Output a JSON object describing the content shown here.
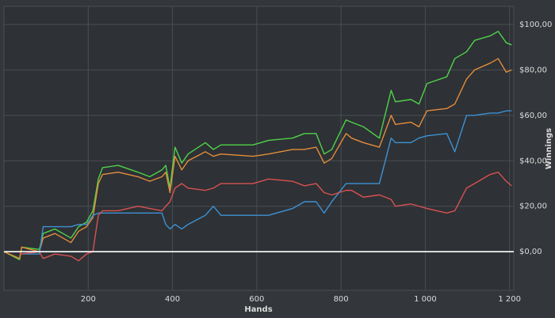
{
  "chart_data": {
    "type": "line",
    "x_label": "Hands",
    "y_label": "Winnings",
    "x": [
      0,
      37,
      42,
      84,
      93,
      121,
      159,
      177,
      196,
      211,
      224,
      234,
      271,
      318,
      346,
      375,
      384,
      394,
      406,
      422,
      437,
      478,
      497,
      515,
      591,
      628,
      685,
      713,
      741,
      760,
      778,
      812,
      825,
      853,
      891,
      919,
      929,
      966,
      985,
      1004,
      1051,
      1070,
      1098,
      1117,
      1154,
      1173,
      1192,
      1205
    ],
    "series": [
      {
        "color": "#4fd24a",
        "values": [
          0,
          -3.5,
          2,
          1,
          8,
          10,
          6,
          11,
          13,
          18,
          32,
          37,
          38,
          35,
          33,
          36,
          38,
          28,
          46,
          39,
          43,
          48,
          45,
          47,
          47,
          49,
          50,
          52,
          52,
          43,
          45,
          58,
          57,
          55,
          50,
          71,
          66,
          67,
          65,
          74,
          77,
          85,
          88,
          93,
          95,
          97,
          92,
          91
        ]
      },
      {
        "color": "#e38d3c",
        "values": [
          0,
          -3,
          2,
          0,
          6,
          8,
          4,
          9,
          11,
          15,
          30,
          34,
          35,
          33,
          31,
          33,
          35,
          26,
          42,
          36,
          40,
          44,
          42,
          43,
          42,
          43,
          45,
          45,
          46,
          39,
          41,
          52,
          50,
          48,
          46,
          60,
          56,
          57,
          55,
          62,
          63,
          65,
          76,
          80,
          83,
          85,
          79,
          80
        ]
      },
      {
        "color": "#3d92d4",
        "values": [
          0,
          0,
          -1,
          -1,
          11,
          11,
          11,
          12,
          12,
          16,
          17,
          17,
          17,
          17,
          17,
          17,
          12,
          10,
          12,
          10,
          12,
          16,
          20,
          16,
          16,
          16,
          19,
          22,
          22,
          17,
          22,
          30,
          30,
          30,
          30,
          50,
          48,
          48,
          50,
          51,
          52,
          44,
          60,
          60,
          61,
          61,
          62,
          62
        ]
      },
      {
        "color": "#d85252",
        "values": [
          0,
          0,
          -1,
          0,
          -3,
          -1,
          -2,
          -4,
          -1,
          0,
          16,
          18,
          18,
          20,
          19,
          18,
          20,
          22,
          28,
          30,
          28,
          27,
          28,
          30,
          30,
          32,
          31,
          29,
          30,
          26,
          25,
          27,
          27,
          24,
          25,
          23,
          20,
          21,
          20,
          19,
          17,
          18,
          28,
          30,
          34,
          35,
          31,
          29
        ]
      }
    ],
    "xlim": [
      0,
      1210
    ],
    "ylim": [
      -17,
      108
    ],
    "xticks": [
      200,
      400,
      600,
      800,
      {
        "value": 1000,
        "label": "1 000"
      },
      {
        "value": 1200,
        "label": "1 200"
      }
    ],
    "yticks": [
      {
        "value": 0,
        "label": "$0,00"
      },
      {
        "value": 20,
        "label": "$20,00"
      },
      {
        "value": 40,
        "label": "$40,00"
      },
      {
        "value": 60,
        "label": "$60,00"
      },
      {
        "value": 80,
        "label": "$80,00"
      },
      {
        "value": 100,
        "label": "$100,00"
      }
    ],
    "grid": true
  }
}
